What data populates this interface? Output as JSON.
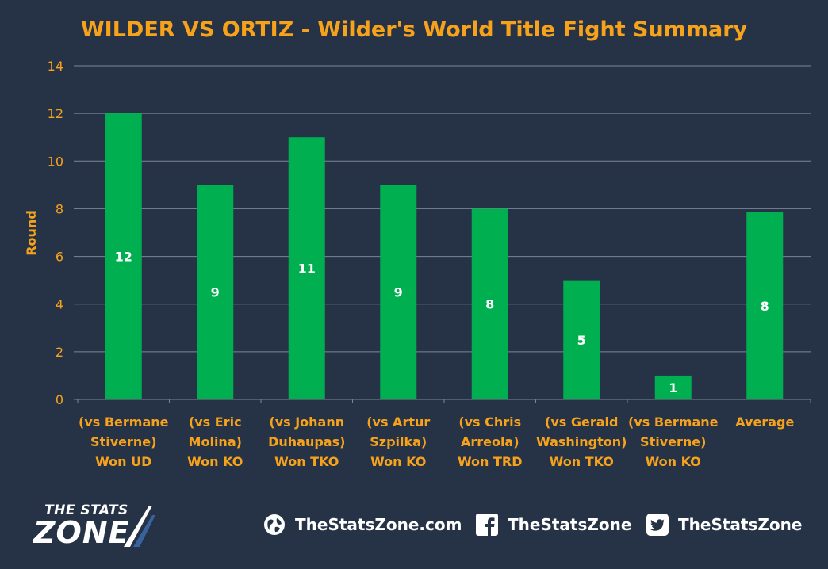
{
  "chart_data": {
    "type": "bar",
    "title": "WILDER VS ORTIZ - Wilder's World Title Fight Summary",
    "xlabel": "",
    "ylabel": "Round",
    "ylim": [
      0,
      14
    ],
    "yticks": [
      0,
      2,
      4,
      6,
      8,
      10,
      12,
      14
    ],
    "grid": true,
    "categories": [
      [
        "(vs Bermane",
        "Stiverne)",
        "Won UD"
      ],
      [
        "(vs Eric",
        "Molina)",
        "Won KO"
      ],
      [
        "(vs Johann",
        "Duhaupas)",
        "Won TKO"
      ],
      [
        "(vs Artur",
        "Szpilka)",
        "Won KO"
      ],
      [
        "(vs Chris",
        "Arreola)",
        "Won TRD"
      ],
      [
        "(vs Gerald",
        "Washington)",
        "Won TKO"
      ],
      [
        "(vs Bermane",
        "Stiverne)",
        "Won KO"
      ],
      [
        "Average"
      ]
    ],
    "values": [
      12,
      9,
      11,
      9,
      8,
      5,
      1,
      7.86
    ],
    "data_labels": [
      "12",
      "9",
      "11",
      "9",
      "8",
      "5",
      "1",
      "8"
    ],
    "colors": {
      "background": "#263347",
      "bar": "#00b050",
      "title": "#f7a21b",
      "axis_text": "#f7a21b",
      "category_text": "#f7a21b",
      "data_label": "#ffffff",
      "grid": "#7c8594"
    }
  },
  "footer": {
    "logo_top": "THE STATS",
    "logo_bottom": "ZONE",
    "website": "TheStatsZone.com",
    "facebook": "TheStatsZone",
    "twitter": "TheStatsZone",
    "icons": [
      "globe-icon",
      "facebook-icon",
      "twitter-icon"
    ]
  }
}
